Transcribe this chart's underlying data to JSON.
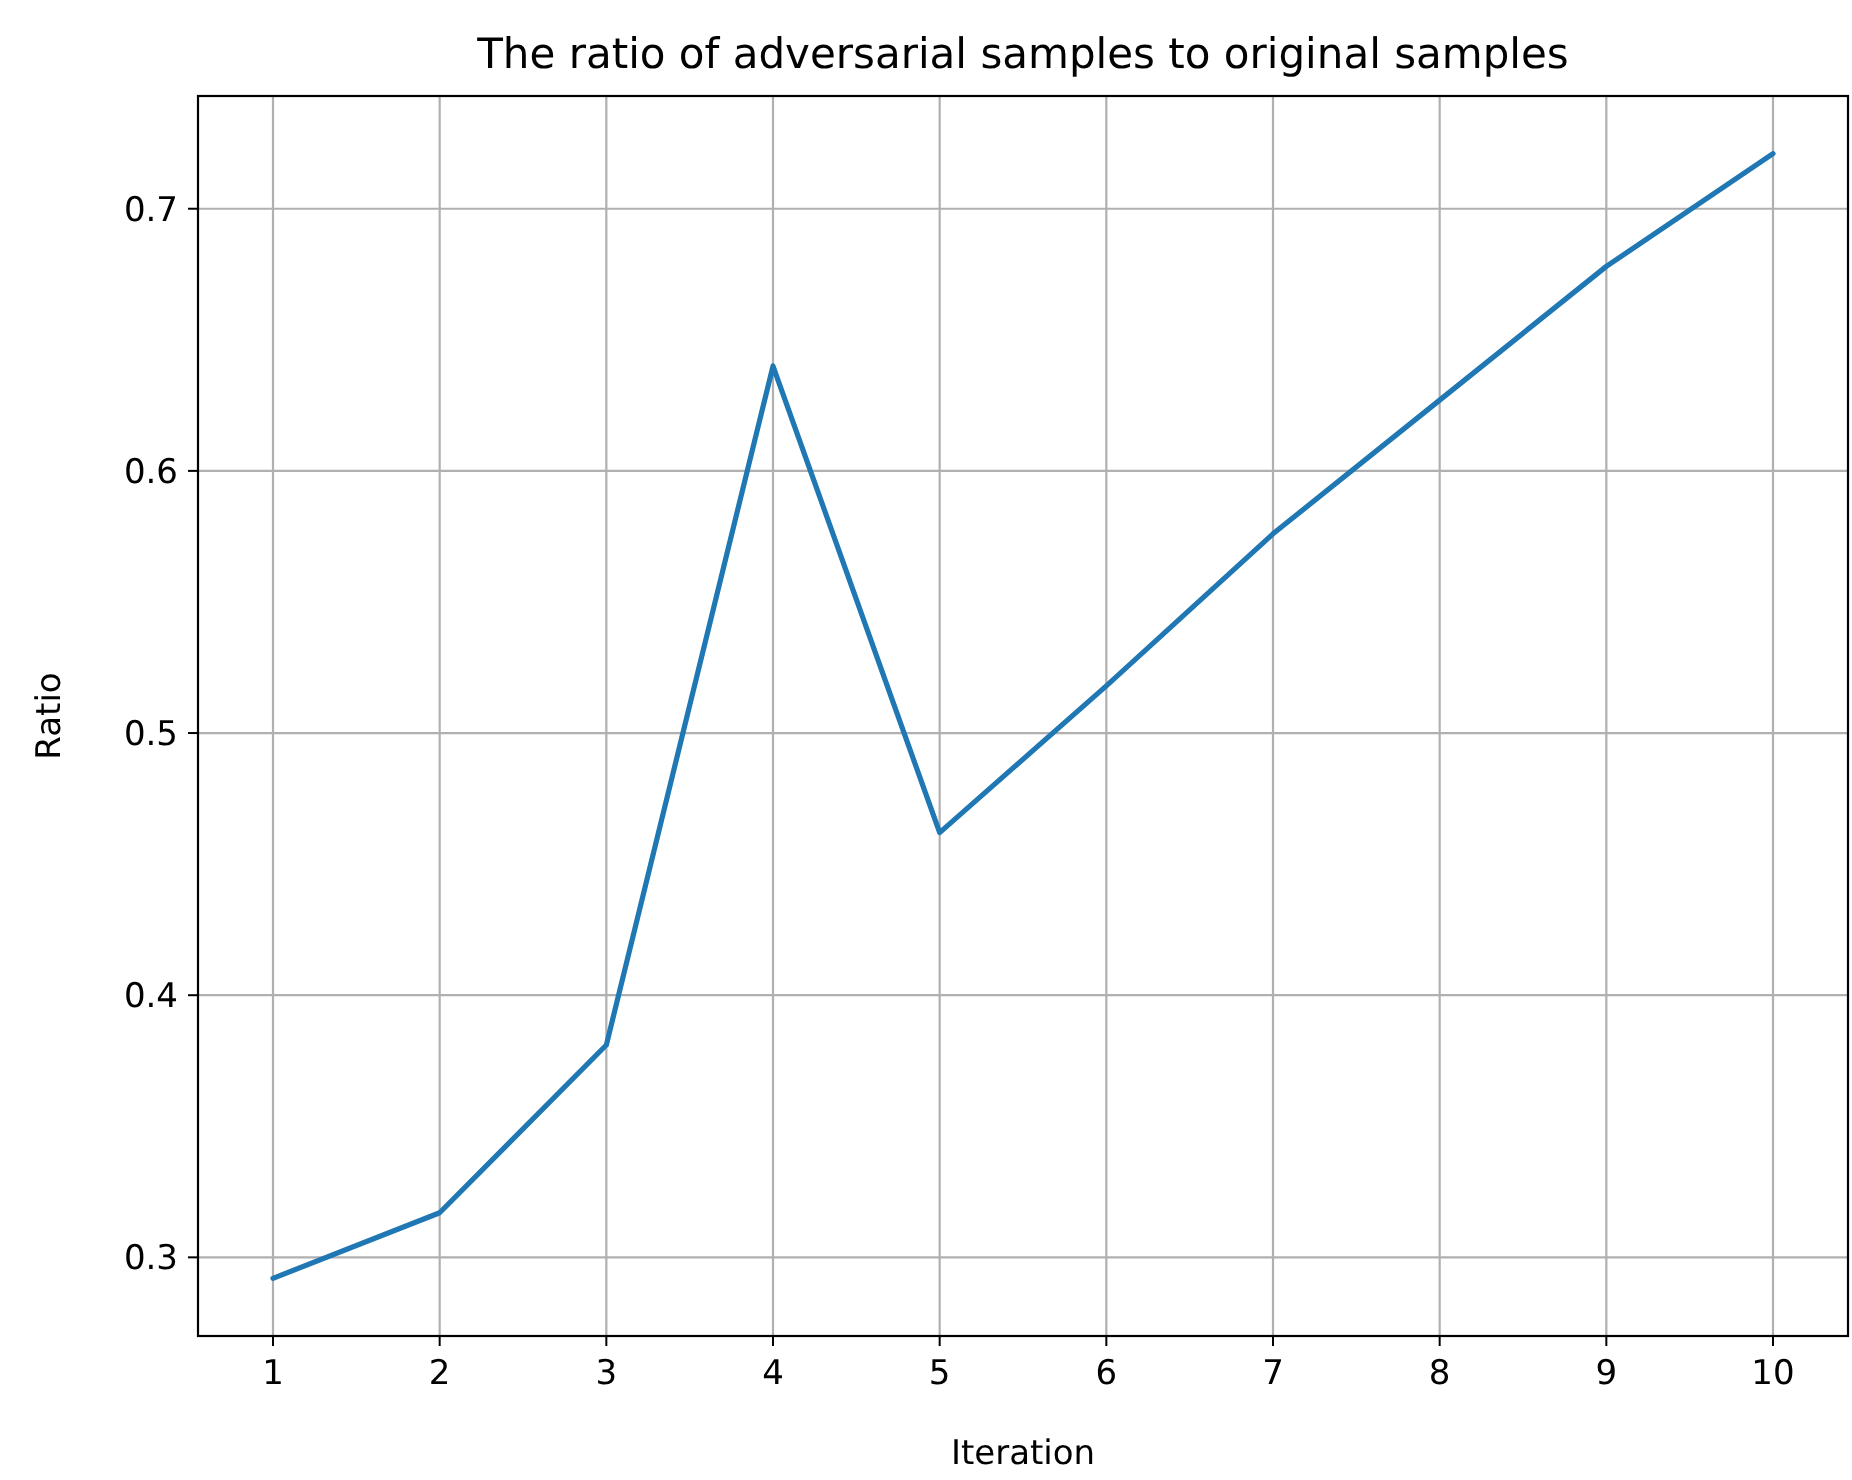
{
  "chart_data": {
    "type": "line",
    "title": "The ratio of adversarial samples to original samples",
    "xlabel": "Iteration",
    "ylabel": "Ratio",
    "x": [
      1,
      2,
      3,
      4,
      5,
      6,
      7,
      8,
      9,
      10
    ],
    "series": [
      {
        "color": "#1f77b4",
        "values": [
          0.292,
          0.317,
          0.381,
          0.64,
          0.462,
          0.518,
          0.576,
          0.627,
          0.678,
          0.721
        ]
      }
    ],
    "xlim": [
      0.55,
      10.45
    ],
    "xticks": [
      1,
      2,
      3,
      4,
      5,
      6,
      7,
      8,
      9,
      10
    ],
    "ylim": [
      0.27,
      0.743
    ],
    "yticks": [
      0.3,
      0.4,
      0.5,
      0.6,
      0.7
    ],
    "grid": true,
    "marker": "none",
    "line_style": "solid"
  }
}
